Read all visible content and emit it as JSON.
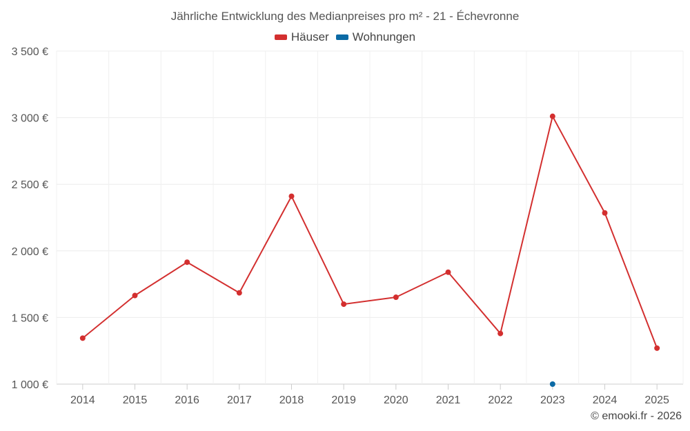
{
  "chart_data": {
    "type": "line",
    "title": "Jährliche Entwicklung des Medianpreises pro m² - 21 - Échevronne",
    "categories": [
      "2014",
      "2015",
      "2016",
      "2017",
      "2018",
      "2019",
      "2020",
      "2021",
      "2022",
      "2023",
      "2024",
      "2025"
    ],
    "series": [
      {
        "name": "Häuser",
        "color": "#d32f2f",
        "values": [
          1345,
          1665,
          1915,
          1685,
          2410,
          1600,
          1652,
          1840,
          1380,
          3010,
          2285,
          1270
        ]
      },
      {
        "name": "Wohnungen",
        "color": "#0b6aa5",
        "values": [
          null,
          null,
          null,
          null,
          null,
          null,
          null,
          null,
          null,
          1000,
          null,
          null
        ]
      }
    ],
    "ylim": [
      1000,
      3500
    ],
    "yticks": [
      1000,
      1500,
      2000,
      2500,
      3000,
      3500
    ],
    "ytick_labels": [
      "1 000 €",
      "1 500 €",
      "2 000 €",
      "2 500 €",
      "3 000 €",
      "3 500 €"
    ],
    "xlabel": "",
    "ylabel": "",
    "legend_position": "top-center",
    "grid": true
  },
  "credit": "© emooki.fr - 2026"
}
